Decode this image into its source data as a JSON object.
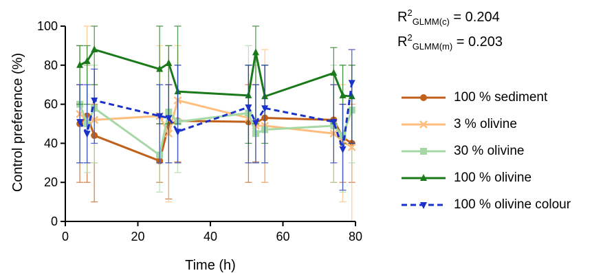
{
  "stats": {
    "line1": {
      "base": "R",
      "sup": "2",
      "sub": "GLMM(c)",
      "value": " = 0.204"
    },
    "line2": {
      "base": "R",
      "sup": "2",
      "sub": "GLMM(m)",
      "value": " = 0.203"
    }
  },
  "chart_data": {
    "type": "line",
    "xlabel": "Time (h)",
    "ylabel": "Control preference (%)",
    "xlim": [
      0,
      80
    ],
    "ylim": [
      0,
      100
    ],
    "xticks": [
      "0",
      "20",
      "40",
      "60",
      "80"
    ],
    "yticks": [
      "0",
      "20",
      "40",
      "60",
      "80",
      "100"
    ],
    "grid": false,
    "legend_position": "right",
    "series": [
      {
        "name": "100 % sediment",
        "color": "#c0601a",
        "marker": "circle",
        "dash": false,
        "x": [
          4,
          6,
          8,
          26,
          28.5,
          31,
          50.5,
          52.5,
          55,
          74,
          76.5,
          79
        ],
        "y": [
          50,
          54,
          44,
          31,
          49.5,
          51.5,
          51,
          50.5,
          53,
          52,
          43,
          40
        ],
        "err_low": [
          30,
          34,
          34,
          11,
          38,
          21,
          31,
          20,
          33,
          32,
          23,
          20
        ],
        "err_high": [
          20,
          26,
          16,
          19,
          20.5,
          28.5,
          19,
          19.5,
          27,
          18,
          17,
          20
        ]
      },
      {
        "name": "3 % olivine",
        "color": "#ffbe7d",
        "marker": "x",
        "dash": false,
        "x": [
          4,
          6,
          8,
          26,
          28.5,
          31,
          50.5,
          52.5,
          55,
          74,
          76.5,
          79
        ],
        "y": [
          55,
          52,
          52,
          54,
          45,
          62,
          53,
          49,
          49,
          45,
          41,
          38
        ],
        "err_low": [
          25,
          22,
          22,
          24,
          35,
          32,
          23,
          19,
          29,
          25,
          31,
          38
        ],
        "err_high": [
          35,
          48,
          18,
          36,
          45,
          28,
          27,
          31,
          39,
          25,
          29,
          22
        ]
      },
      {
        "name": "30 % olivine",
        "color": "#a6d8a6",
        "marker": "square",
        "dash": false,
        "x": [
          4,
          6,
          8,
          26,
          28.5,
          31,
          50.5,
          52.5,
          55,
          74,
          76.5,
          79
        ],
        "y": [
          60,
          50,
          58,
          34,
          56,
          51,
          55.5,
          45,
          47,
          49,
          44,
          57
        ],
        "err_low": [
          30,
          25,
          28,
          19,
          26,
          26,
          25.5,
          15,
          17,
          29,
          29,
          27
        ],
        "err_high": [
          30,
          30,
          22,
          36,
          34,
          29,
          34.5,
          35,
          33,
          31,
          36,
          23
        ]
      },
      {
        "name": "100 % olivine",
        "color": "#1a7a1a",
        "marker": "triangle",
        "dash": false,
        "x": [
          4,
          6,
          8,
          26,
          28.5,
          31,
          50.5,
          52.5,
          55,
          74,
          76.5,
          79
        ],
        "y": [
          80,
          82,
          88,
          78,
          81,
          66.5,
          64.5,
          86.5,
          64,
          76,
          64.5,
          64
        ],
        "err_low": [
          20,
          22,
          18,
          28,
          31,
          16.5,
          24.5,
          36.5,
          24,
          26,
          24.5,
          24
        ],
        "err_high": [
          10,
          8,
          12,
          22,
          9,
          33.5,
          15.5,
          13.5,
          16,
          13,
          15.5,
          16
        ]
      },
      {
        "name": "100 % olivine colour",
        "color": "#1a32c8",
        "marker": "triangle-down",
        "dash": true,
        "x": [
          4,
          6,
          8,
          26,
          28.5,
          31,
          50.5,
          52.5,
          55,
          74,
          76.5,
          79
        ],
        "y": [
          51,
          45,
          62,
          54,
          53,
          46,
          58.5,
          50.5,
          58,
          51,
          37,
          71
        ],
        "err_low": [
          21,
          15,
          22,
          24,
          23,
          16,
          28.5,
          20.5,
          28,
          21,
          21,
          31
        ],
        "err_high": [
          19,
          25,
          16,
          16,
          17,
          34,
          21.5,
          19.5,
          22,
          19,
          23,
          17
        ]
      }
    ]
  }
}
